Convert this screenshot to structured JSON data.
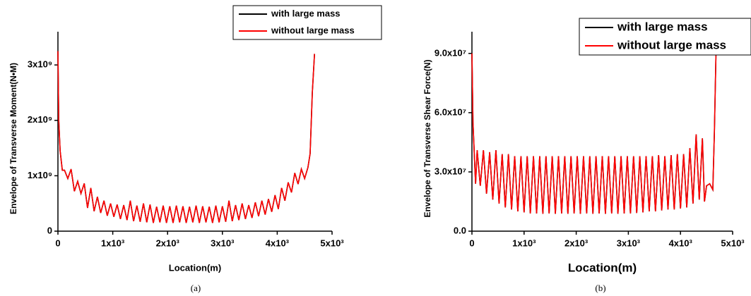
{
  "chart_data": [
    {
      "type": "line",
      "caption": "(a)",
      "x_label": "Location(m)",
      "y_label": "Envelope of Transverse Moment(N•M)",
      "legend": "upper right",
      "xlim": [
        0,
        5000
      ],
      "ylim": [
        0,
        3600000000.0
      ],
      "xticks": [
        0,
        {
          "value": 1000,
          "label": "1x10³"
        },
        {
          "value": 2000,
          "label": "2x10³"
        },
        {
          "value": 3000,
          "label": "3x10³"
        },
        {
          "value": 4000,
          "label": "4x10³"
        },
        {
          "value": 5000,
          "label": "5x10³"
        }
      ],
      "yticks": [
        0,
        {
          "value": 1000000000.0,
          "label": "1x10⁹"
        },
        {
          "value": 2000000000.0,
          "label": "2x10⁹"
        },
        {
          "value": 3000000000.0,
          "label": "3x10⁹"
        }
      ],
      "x": [
        0,
        15,
        40,
        80,
        120,
        180,
        240,
        300,
        360,
        420,
        480,
        540,
        600,
        660,
        720,
        780,
        840,
        900,
        960,
        1020,
        1080,
        1140,
        1200,
        1260,
        1320,
        1380,
        1440,
        1500,
        1560,
        1620,
        1680,
        1740,
        1800,
        1860,
        1920,
        1980,
        2040,
        2100,
        2160,
        2220,
        2280,
        2340,
        2400,
        2460,
        2520,
        2580,
        2640,
        2700,
        2760,
        2820,
        2880,
        2940,
        3000,
        3060,
        3120,
        3180,
        3240,
        3300,
        3360,
        3420,
        3480,
        3540,
        3600,
        3660,
        3720,
        3780,
        3840,
        3900,
        3960,
        4020,
        4080,
        4140,
        4200,
        4260,
        4320,
        4380,
        4440,
        4500,
        4560,
        4600,
        4640,
        4680
      ],
      "series": [
        {
          "name": "with large mass",
          "color": "#000000",
          "values": [
            3250000000.0,
            2000000000.0,
            1450000000.0,
            1100000000.0,
            1100000000.0,
            950000000.0,
            1120000000.0,
            720000000.0,
            900000000.0,
            680000000.0,
            860000000.0,
            420000000.0,
            780000000.0,
            360000000.0,
            620000000.0,
            330000000.0,
            550000000.0,
            280000000.0,
            500000000.0,
            260000000.0,
            480000000.0,
            220000000.0,
            470000000.0,
            200000000.0,
            550000000.0,
            180000000.0,
            460000000.0,
            170000000.0,
            500000000.0,
            160000000.0,
            480000000.0,
            150000000.0,
            440000000.0,
            160000000.0,
            460000000.0,
            150000000.0,
            450000000.0,
            150000000.0,
            460000000.0,
            160000000.0,
            450000000.0,
            150000000.0,
            440000000.0,
            160000000.0,
            460000000.0,
            150000000.0,
            450000000.0,
            160000000.0,
            440000000.0,
            150000000.0,
            460000000.0,
            160000000.0,
            450000000.0,
            170000000.0,
            550000000.0,
            180000000.0,
            470000000.0,
            200000000.0,
            500000000.0,
            220000000.0,
            470000000.0,
            240000000.0,
            520000000.0,
            270000000.0,
            550000000.0,
            300000000.0,
            580000000.0,
            350000000.0,
            650000000.0,
            400000000.0,
            780000000.0,
            550000000.0,
            880000000.0,
            700000000.0,
            1050000000.0,
            850000000.0,
            1120000000.0,
            950000000.0,
            1150000000.0,
            1400000000.0,
            2500000000.0,
            3200000000.0
          ]
        },
        {
          "name": "without large mass",
          "color": "#ff0000",
          "values": [
            3250000000.0,
            2000000000.0,
            1450000000.0,
            1100000000.0,
            1100000000.0,
            950000000.0,
            1120000000.0,
            720000000.0,
            900000000.0,
            680000000.0,
            860000000.0,
            420000000.0,
            780000000.0,
            360000000.0,
            620000000.0,
            330000000.0,
            550000000.0,
            280000000.0,
            500000000.0,
            260000000.0,
            480000000.0,
            220000000.0,
            470000000.0,
            200000000.0,
            550000000.0,
            180000000.0,
            460000000.0,
            170000000.0,
            500000000.0,
            160000000.0,
            480000000.0,
            150000000.0,
            440000000.0,
            160000000.0,
            460000000.0,
            150000000.0,
            450000000.0,
            150000000.0,
            460000000.0,
            160000000.0,
            450000000.0,
            150000000.0,
            440000000.0,
            160000000.0,
            460000000.0,
            150000000.0,
            450000000.0,
            160000000.0,
            440000000.0,
            150000000.0,
            460000000.0,
            160000000.0,
            450000000.0,
            170000000.0,
            550000000.0,
            180000000.0,
            470000000.0,
            200000000.0,
            500000000.0,
            220000000.0,
            470000000.0,
            240000000.0,
            520000000.0,
            270000000.0,
            550000000.0,
            300000000.0,
            580000000.0,
            350000000.0,
            650000000.0,
            400000000.0,
            780000000.0,
            550000000.0,
            880000000.0,
            700000000.0,
            1050000000.0,
            850000000.0,
            1120000000.0,
            950000000.0,
            1150000000.0,
            1400000000.0,
            2500000000.0,
            3200000000.0
          ]
        }
      ]
    },
    {
      "type": "line",
      "caption": "(b)",
      "x_label": "Location(m)",
      "y_label": "Envelope of Transverse Shear Force(N)",
      "legend": "upper right",
      "xlim": [
        0,
        5000
      ],
      "ylim": [
        0,
        101000000.0
      ],
      "xticks": [
        0,
        {
          "value": 1000,
          "label": "1x10³"
        },
        {
          "value": 2000,
          "label": "2x10³"
        },
        {
          "value": 3000,
          "label": "3x10³"
        },
        {
          "value": 4000,
          "label": "4x10³"
        },
        {
          "value": 5000,
          "label": "5x10³"
        }
      ],
      "yticks": [
        {
          "value": 0,
          "label": "0.0"
        },
        {
          "value": 30000000.0,
          "label": "3.0x10⁷"
        },
        {
          "value": 60000000.0,
          "label": "6.0x10⁷"
        },
        {
          "value": 90000000.0,
          "label": "9.0x10⁷"
        }
      ],
      "x": [
        0,
        20,
        50,
        70,
        100,
        160,
        220,
        280,
        340,
        400,
        460,
        520,
        580,
        640,
        700,
        760,
        820,
        880,
        940,
        1000,
        1060,
        1120,
        1180,
        1240,
        1300,
        1360,
        1420,
        1480,
        1540,
        1600,
        1660,
        1720,
        1780,
        1840,
        1900,
        1960,
        2020,
        2080,
        2140,
        2200,
        2260,
        2320,
        2380,
        2440,
        2500,
        2560,
        2620,
        2680,
        2740,
        2800,
        2860,
        2920,
        2980,
        3040,
        3100,
        3160,
        3220,
        3280,
        3340,
        3400,
        3460,
        3520,
        3580,
        3640,
        3700,
        3760,
        3820,
        3880,
        3940,
        4000,
        4060,
        4120,
        4180,
        4240,
        4300,
        4360,
        4420,
        4460,
        4500,
        4560,
        4620,
        4650,
        4680
      ],
      "series": [
        {
          "name": "with large mass",
          "color": "#000000",
          "values": [
            90000000.0,
            55000000.0,
            36000000.0,
            24000000.0,
            41000000.0,
            23000000.0,
            41000000.0,
            19000000.0,
            40000000.0,
            16000000.0,
            41000000.0,
            14000000.0,
            39000000.0,
            12000000.0,
            39000000.0,
            11000000.0,
            38000000.0,
            10000000.0,
            38000000.0,
            9500000.0,
            38000000.0,
            9000000.0,
            38000000.0,
            9000000.0,
            38000000.0,
            8800000.0,
            38000000.0,
            9000000.0,
            38000000.0,
            8800000.0,
            38000000.0,
            9000000.0,
            38000000.0,
            8800000.0,
            38000000.0,
            9000000.0,
            38000000.0,
            8800000.0,
            38000000.0,
            9000000.0,
            38000000.0,
            8800000.0,
            38000000.0,
            9000000.0,
            38000000.0,
            8800000.0,
            38000000.0,
            9000000.0,
            38000000.0,
            8800000.0,
            38000000.0,
            9000000.0,
            38000000.0,
            9000000.0,
            38000000.0,
            9200000.0,
            38000000.0,
            9500000.0,
            38000000.0,
            10000000.0,
            38000000.0,
            10000000.0,
            38500000.0,
            10500000.0,
            38000000.0,
            11000000.0,
            38500000.0,
            11000000.0,
            39000000.0,
            11500000.0,
            39000000.0,
            12000000.0,
            42000000.0,
            14000000.0,
            49000000.0,
            16000000.0,
            47000000.0,
            15000000.0,
            23000000.0,
            24000000.0,
            21000000.0,
            50000000.0,
            89000000.0
          ]
        },
        {
          "name": "without large mass",
          "color": "#ff0000",
          "values": [
            90000000.0,
            55000000.0,
            36000000.0,
            24000000.0,
            41000000.0,
            23000000.0,
            41000000.0,
            19000000.0,
            40000000.0,
            16000000.0,
            41000000.0,
            14000000.0,
            39000000.0,
            12000000.0,
            39000000.0,
            11000000.0,
            38000000.0,
            10000000.0,
            38000000.0,
            9500000.0,
            38000000.0,
            9000000.0,
            38000000.0,
            9000000.0,
            38000000.0,
            8800000.0,
            38000000.0,
            9000000.0,
            38000000.0,
            8800000.0,
            38000000.0,
            9000000.0,
            38000000.0,
            8800000.0,
            38000000.0,
            9000000.0,
            38000000.0,
            8800000.0,
            38000000.0,
            9000000.0,
            38000000.0,
            8800000.0,
            38000000.0,
            9000000.0,
            38000000.0,
            8800000.0,
            38000000.0,
            9000000.0,
            38000000.0,
            8800000.0,
            38000000.0,
            9000000.0,
            38000000.0,
            9000000.0,
            38000000.0,
            9200000.0,
            38000000.0,
            9500000.0,
            38000000.0,
            10000000.0,
            38000000.0,
            10000000.0,
            38500000.0,
            10500000.0,
            38000000.0,
            11000000.0,
            38500000.0,
            11000000.0,
            39000000.0,
            11500000.0,
            39000000.0,
            12000000.0,
            42000000.0,
            14000000.0,
            49000000.0,
            16000000.0,
            47000000.0,
            15000000.0,
            23000000.0,
            24000000.0,
            21000000.0,
            50000000.0,
            89000000.0
          ]
        }
      ]
    }
  ]
}
